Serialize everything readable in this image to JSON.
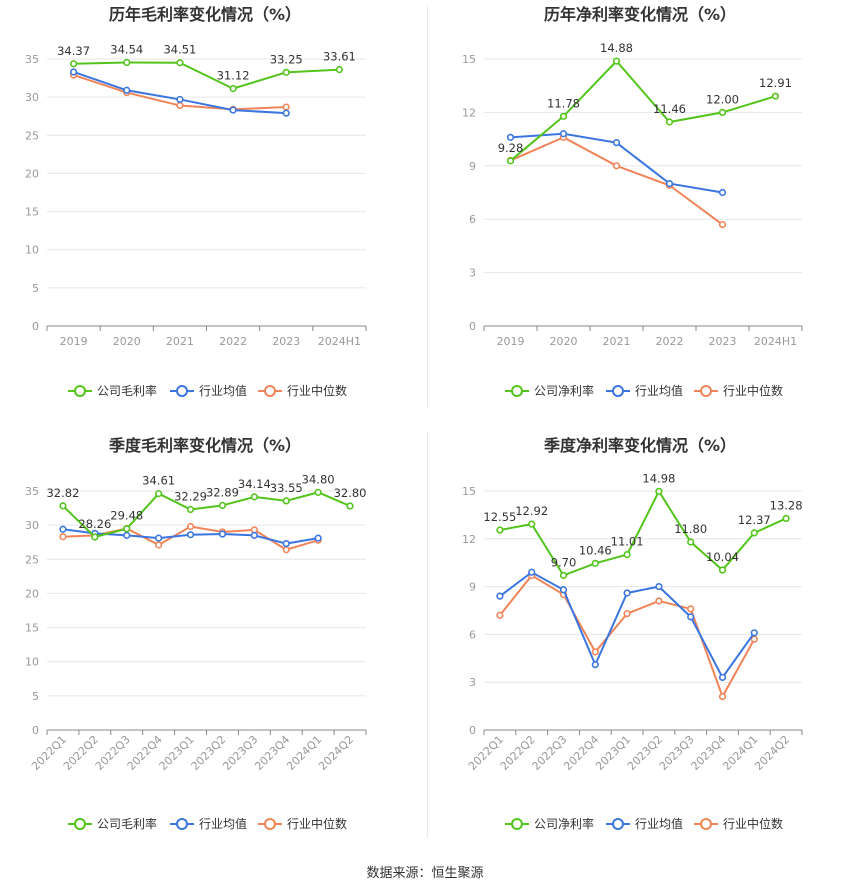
{
  "source": "数据来源：恒生聚源",
  "colors": {
    "company": "#52c41a",
    "avg": "#3a75e0",
    "median": "#f08458",
    "grid": "#e6e6e6",
    "axis": "#999999",
    "text": "#333333"
  },
  "chart_data": [
    {
      "type": "line",
      "title": "历年毛利率变化情况（%）",
      "categories": [
        "2019",
        "2020",
        "2021",
        "2022",
        "2023",
        "2024H1"
      ],
      "ylim": [
        0,
        35
      ],
      "yticks": [
        0,
        5,
        10,
        15,
        20,
        25,
        30,
        35
      ],
      "series": [
        {
          "name": "公司毛利率",
          "values": [
            34.37,
            34.54,
            34.51,
            31.12,
            33.25,
            33.61
          ],
          "labels": [
            "34.37",
            "34.54",
            "34.51",
            "31.12",
            "33.25",
            "33.61"
          ]
        },
        {
          "name": "行业均值",
          "values": [
            33.3,
            30.9,
            29.7,
            28.3,
            27.9,
            null
          ]
        },
        {
          "name": "行业中位数",
          "values": [
            32.9,
            30.6,
            28.9,
            28.4,
            28.7,
            null
          ]
        }
      ]
    },
    {
      "type": "line",
      "title": "历年净利率变化情况（%）",
      "categories": [
        "2019",
        "2020",
        "2021",
        "2022",
        "2023",
        "2024H1"
      ],
      "ylim": [
        0,
        15
      ],
      "yticks": [
        0,
        3,
        6,
        9,
        12,
        15
      ],
      "series": [
        {
          "name": "公司净利率",
          "values": [
            9.28,
            11.78,
            14.88,
            11.46,
            12.0,
            12.91
          ],
          "labels": [
            "9.28",
            "11.78",
            "14.88",
            "11.46",
            "12.00",
            "12.91"
          ]
        },
        {
          "name": "行业均值",
          "values": [
            10.6,
            10.8,
            10.3,
            8.0,
            7.5,
            null
          ]
        },
        {
          "name": "行业中位数",
          "values": [
            9.3,
            10.6,
            9.0,
            7.9,
            5.7,
            null
          ]
        }
      ]
    },
    {
      "type": "line",
      "title": "季度毛利率变化情况（%）",
      "categories": [
        "2022Q1",
        "2022Q2",
        "2022Q3",
        "2022Q4",
        "2023Q1",
        "2023Q2",
        "2023Q3",
        "2023Q4",
        "2024Q1",
        "2024Q2"
      ],
      "ylim": [
        0,
        35
      ],
      "yticks": [
        0,
        5,
        10,
        15,
        20,
        25,
        30,
        35
      ],
      "series": [
        {
          "name": "公司毛利率",
          "values": [
            32.82,
            28.26,
            29.48,
            34.61,
            32.29,
            32.89,
            34.14,
            33.55,
            34.8,
            32.8
          ],
          "labels": [
            "32.82",
            "28.26",
            "29.48",
            "34.61",
            "32.29",
            "32.89",
            "34.14",
            "33.55",
            "34.80",
            "32.80"
          ]
        },
        {
          "name": "行业均值",
          "values": [
            29.4,
            28.8,
            28.5,
            28.1,
            28.6,
            28.7,
            28.5,
            27.3,
            28.1,
            null
          ]
        },
        {
          "name": "行业中位数",
          "values": [
            28.3,
            28.5,
            29.5,
            27.1,
            29.8,
            29.0,
            29.3,
            26.4,
            27.8,
            null
          ]
        }
      ]
    },
    {
      "type": "line",
      "title": "季度净利率变化情况（%）",
      "categories": [
        "2022Q1",
        "2022Q2",
        "2022Q3",
        "2022Q4",
        "2023Q1",
        "2023Q2",
        "2023Q3",
        "2023Q4",
        "2024Q1",
        "2024Q2"
      ],
      "ylim": [
        0,
        15
      ],
      "yticks": [
        0,
        3,
        6,
        9,
        12,
        15
      ],
      "series": [
        {
          "name": "公司净利率",
          "values": [
            12.55,
            12.92,
            9.7,
            10.46,
            11.01,
            14.98,
            11.8,
            10.04,
            12.37,
            13.28
          ],
          "labels": [
            "12.55",
            "12.92",
            "9.70",
            "10.46",
            "11.01",
            "14.98",
            "11.80",
            "10.04",
            "12.37",
            "13.28"
          ]
        },
        {
          "name": "行业均值",
          "values": [
            8.4,
            9.9,
            8.8,
            4.1,
            8.6,
            9.0,
            7.1,
            3.3,
            6.1,
            null
          ]
        },
        {
          "name": "行业中位数",
          "values": [
            7.2,
            9.7,
            8.5,
            4.9,
            7.3,
            8.1,
            7.6,
            2.1,
            5.7,
            null
          ]
        }
      ]
    }
  ]
}
